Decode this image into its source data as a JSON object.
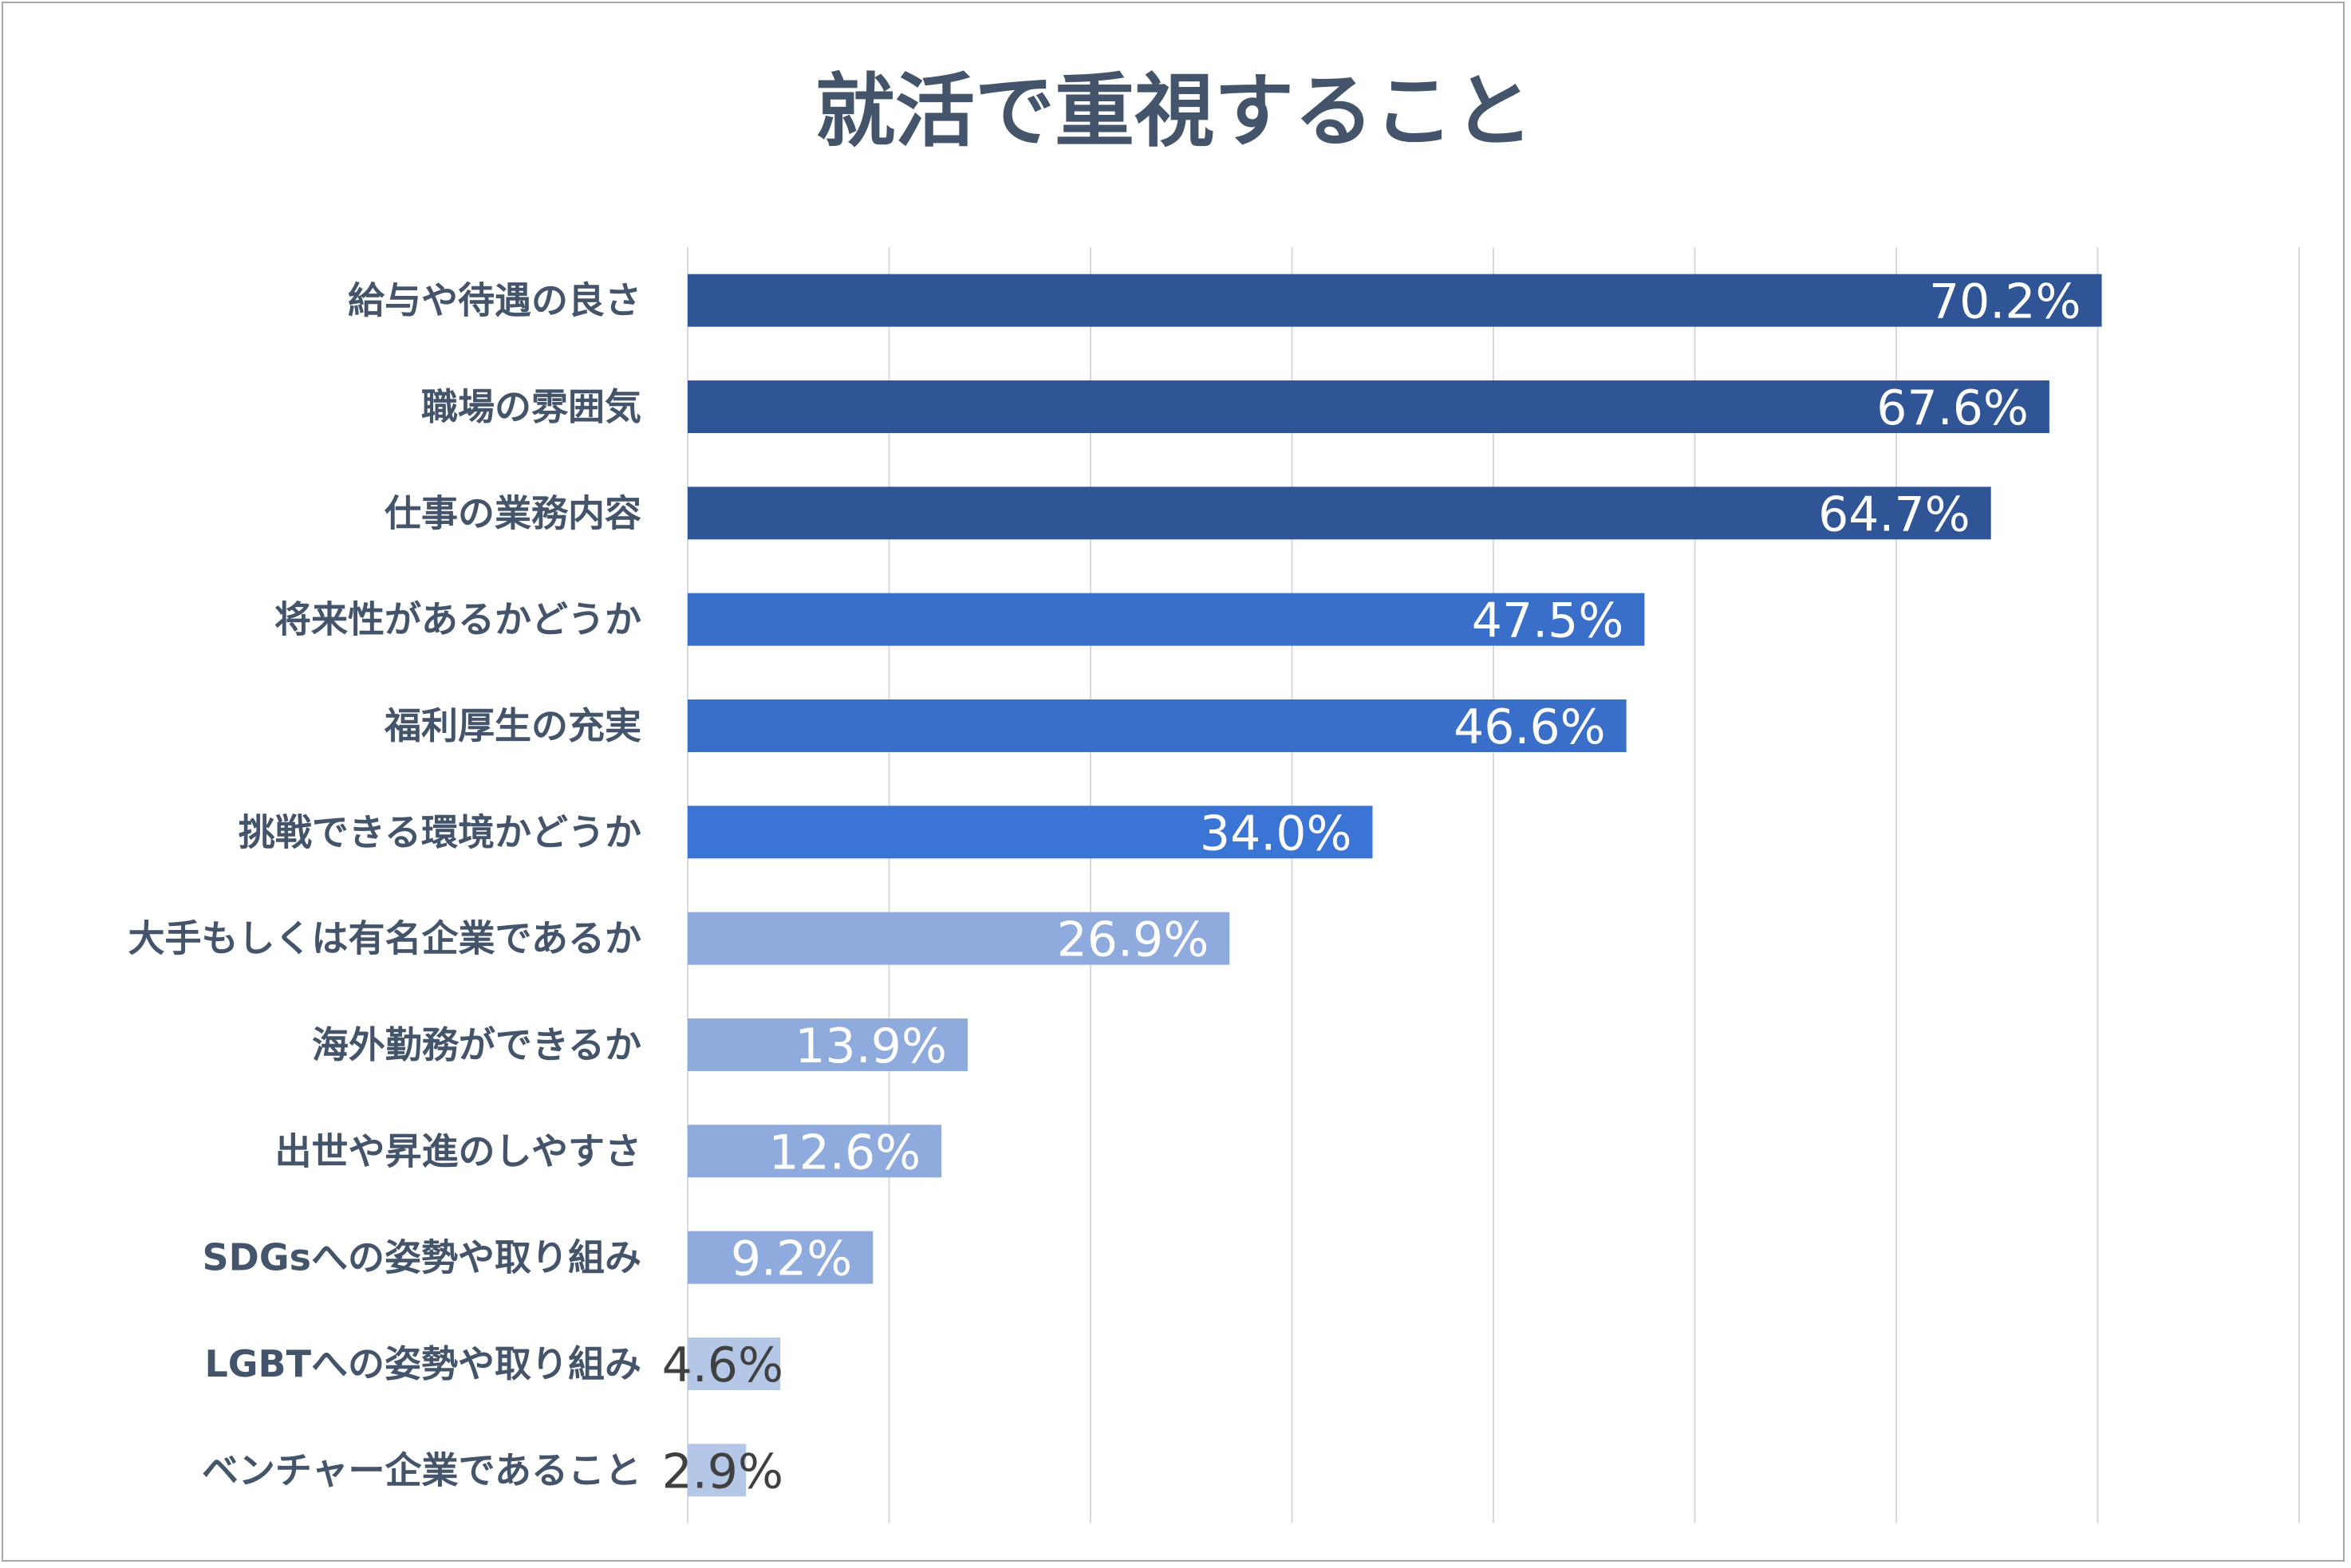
{
  "chart_data": {
    "type": "bar",
    "orientation": "horizontal",
    "title": "就活で重視すること",
    "xlabel": "",
    "ylabel": "",
    "xlim": [
      0,
      80
    ],
    "grid": true,
    "legend": "none",
    "categories": [
      "給与や待遇の良さ",
      "職場の雰囲気",
      "仕事の業務内容",
      "将来性があるかどうか",
      "福利厚生の充実",
      "挑戦できる環境かどうか",
      "大手もしくは有名企業であるか",
      "海外勤務ができるか",
      "出世や昇進のしやすさ",
      "SDGsへの姿勢や取り組み",
      "LGBTへの姿勢や取り組み",
      "ベンチャー企業であること"
    ],
    "values": [
      70.2,
      67.6,
      64.7,
      47.5,
      46.6,
      34.0,
      26.9,
      13.9,
      12.6,
      9.2,
      4.6,
      2.9
    ],
    "value_labels": [
      "70.2%",
      "67.6%",
      "64.7%",
      "47.5%",
      "46.6%",
      "34.0%",
      "26.9%",
      "13.9%",
      "12.6%",
      "9.2%",
      "4.6%",
      "2.9%"
    ],
    "bar_colors": [
      "#2f5597",
      "#2f5597",
      "#2f5597",
      "#3a6fc9",
      "#3a6fc9",
      "#3a74d4",
      "#8faadc",
      "#8faadc",
      "#8faadc",
      "#8faadc",
      "#b4c7e7",
      "#b4c7e7"
    ],
    "label_colors": [
      "#ffffff",
      "#ffffff",
      "#ffffff",
      "#ffffff",
      "#ffffff",
      "#ffffff",
      "#ffffff",
      "#ffffff",
      "#ffffff",
      "#ffffff",
      "#404040",
      "#404040"
    ]
  }
}
